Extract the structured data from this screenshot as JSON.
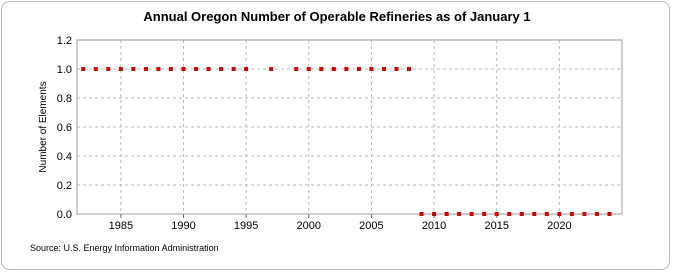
{
  "chart_data": {
    "type": "scatter",
    "title": "Annual Oregon Number of Operable Refineries as of January 1",
    "y_label": "Number of Elements",
    "source": "Source: U.S. Energy Information Administration",
    "x": [
      1982,
      1983,
      1984,
      1985,
      1986,
      1987,
      1988,
      1989,
      1990,
      1991,
      1992,
      1993,
      1994,
      1995,
      1996,
      1997,
      1998,
      1999,
      2000,
      2001,
      2002,
      2003,
      2004,
      2005,
      2006,
      2007,
      2008,
      2009,
      2010,
      2011,
      2012,
      2013,
      2014,
      2015,
      2016,
      2017,
      2018,
      2019,
      2020,
      2021,
      2022,
      2023,
      2024
    ],
    "series": [
      {
        "name": "Oregon",
        "color": "#cc0000",
        "values": [
          1,
          1,
          1,
          1,
          1,
          1,
          1,
          1,
          1,
          1,
          1,
          1,
          1,
          1,
          null,
          1,
          null,
          1,
          1,
          1,
          1,
          1,
          1,
          1,
          1,
          1,
          1,
          0,
          0,
          0,
          0,
          0,
          0,
          0,
          0,
          0,
          0,
          0,
          0,
          0,
          0,
          0,
          0
        ]
      }
    ],
    "xlim": [
      1981.5,
      2025
    ],
    "xticks": [
      1985,
      1990,
      1995,
      2000,
      2005,
      2010,
      2015,
      2020
    ],
    "ylim": [
      0,
      1.2
    ],
    "yticks": [
      {
        "value": 0,
        "label": "0.0"
      },
      {
        "value": 0.2,
        "label": "0.2"
      },
      {
        "value": 0.4,
        "label": "0.4"
      },
      {
        "value": 0.6,
        "label": "0.6"
      },
      {
        "value": 0.8,
        "label": "0.8"
      },
      {
        "value": 1,
        "label": "1.0"
      },
      {
        "value": 1.2,
        "label": "1.2"
      }
    ],
    "grid": true
  }
}
